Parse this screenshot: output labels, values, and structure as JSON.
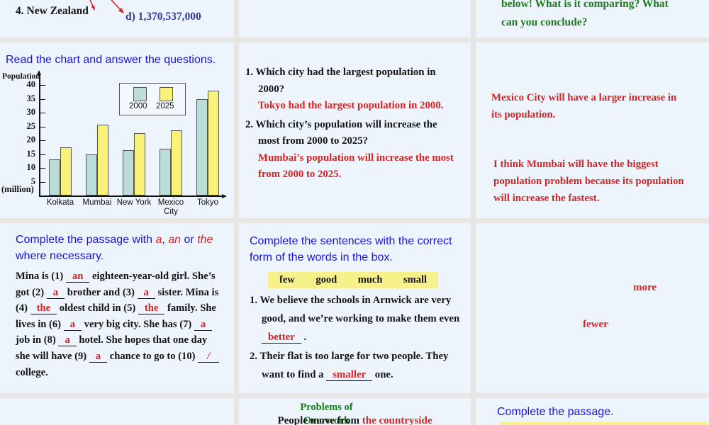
{
  "colors": {
    "cell_bg": "#edf4fc",
    "gap_bg": "#e8e6e4",
    "blue_title": "#1813e0",
    "dark_blue": "#333a99",
    "red": "#d32525",
    "green": "#1e7b1e",
    "bar_2000": "#bcdcd8",
    "bar_2025": "#f8f378",
    "highlight": "#f7f18a"
  },
  "top_left": {
    "item": "4. New Zealand",
    "answer": "d) 1,370,537,000"
  },
  "top_right": {
    "lines": [
      "below! What is it comparing? What",
      "can you conclude?"
    ]
  },
  "chart_cell": {
    "title": "Read the chart and answer the questions."
  },
  "chart_data": {
    "type": "bar",
    "ylabel_top": "Population",
    "ylabel_bottom": "(million)",
    "categories": [
      "Kolkata",
      "Mumbai",
      "New York",
      "Mexico City",
      "Tokyo"
    ],
    "series": [
      {
        "name": "2000",
        "color": "#bcdcd8",
        "values": [
          13,
          15,
          16.3,
          16.8,
          35
        ]
      },
      {
        "name": "2025",
        "color": "#f8f378",
        "values": [
          17.5,
          25.7,
          22.6,
          23.7,
          38
        ]
      }
    ],
    "yticks": [
      40,
      35,
      30,
      25,
      20,
      15,
      10,
      5
    ],
    "ylim": [
      0,
      42
    ],
    "grid": false,
    "legend_position": "top-center"
  },
  "questions_cell": {
    "q1": "1. Which city had the largest population in 2000?",
    "a1": "Tokyo had the largest population in 2000.",
    "q2": "2. Which city’s population will increase the most from 2000 to 2025?",
    "a2": "Mumbai’s population will increase the most from 2000 to 2025."
  },
  "right_answers": {
    "p1": "Mexico City will have a larger increase in its population.",
    "p2": "I think Mumbai will have the biggest population problem because its population will increase the fastest."
  },
  "passage_cell": {
    "title_segments": [
      {
        "t": "Complete the passage with ",
        "c": ""
      },
      {
        "t": "a",
        "c": "redit"
      },
      {
        "t": ", ",
        "c": ""
      },
      {
        "t": "an",
        "c": "redit"
      },
      {
        "t": " or ",
        "c": ""
      },
      {
        "t": "the",
        "c": "redit"
      },
      {
        "t": " where necessary.",
        "c": ""
      }
    ],
    "passage_segments": [
      {
        "t": "Mina is (1) ",
        "c": ""
      },
      {
        "t": "an",
        "c": "ans"
      },
      {
        "t": " eighteen-year-old girl. She’s got (2) ",
        "c": ""
      },
      {
        "t": "a",
        "c": "ans"
      },
      {
        "t": " brother and (3) ",
        "c": ""
      },
      {
        "t": "a",
        "c": "ans"
      },
      {
        "t": " sister. Mina is (4) ",
        "c": ""
      },
      {
        "t": "the",
        "c": "ans"
      },
      {
        "t": " oldest child in (5) ",
        "c": ""
      },
      {
        "t": "the",
        "c": "ans"
      },
      {
        "t": " family. She lives in (6) ",
        "c": ""
      },
      {
        "t": "a",
        "c": "ans"
      },
      {
        "t": " very big city. She has (7) ",
        "c": ""
      },
      {
        "t": "a",
        "c": "ans"
      },
      {
        "t": " job in (8) ",
        "c": ""
      },
      {
        "t": "a",
        "c": "ans"
      },
      {
        "t": " hotel. She hopes that one day she will have (9) ",
        "c": ""
      },
      {
        "t": "a",
        "c": "ans"
      },
      {
        "t": " chance to go to (10) ",
        "c": ""
      },
      {
        "t": "/",
        "c": "ans slash"
      },
      {
        "t": " college.",
        "c": ""
      }
    ]
  },
  "wordbox_cell": {
    "title": "Complete the sentences with the correct form of the words in the box.",
    "words": [
      "few",
      "good",
      "much",
      "small"
    ],
    "s1_segments": [
      {
        "t": "1. We believe the schools in Arnwick are very good, and we’re working to make them even ",
        "c": ""
      },
      {
        "t": "better",
        "c": "ans"
      },
      {
        "t": " .",
        "c": ""
      }
    ],
    "s2_segments": [
      {
        "t": "2. Their flat is too large for two people. They want to find a ",
        "c": ""
      },
      {
        "t": "smaller",
        "c": "ans"
      },
      {
        "t": " one.",
        "c": ""
      }
    ]
  },
  "more_fewer_cell": {
    "word1": "more",
    "word2": "fewer"
  },
  "bottom_center": {
    "heading_line1": "Problems of",
    "heading_line2": "Overwork",
    "sentence_segments": [
      {
        "t": "People move from ",
        "c": ""
      },
      {
        "t": "the countryside",
        "c": "red"
      }
    ]
  },
  "bottom_right": {
    "title": "Complete the passage."
  }
}
